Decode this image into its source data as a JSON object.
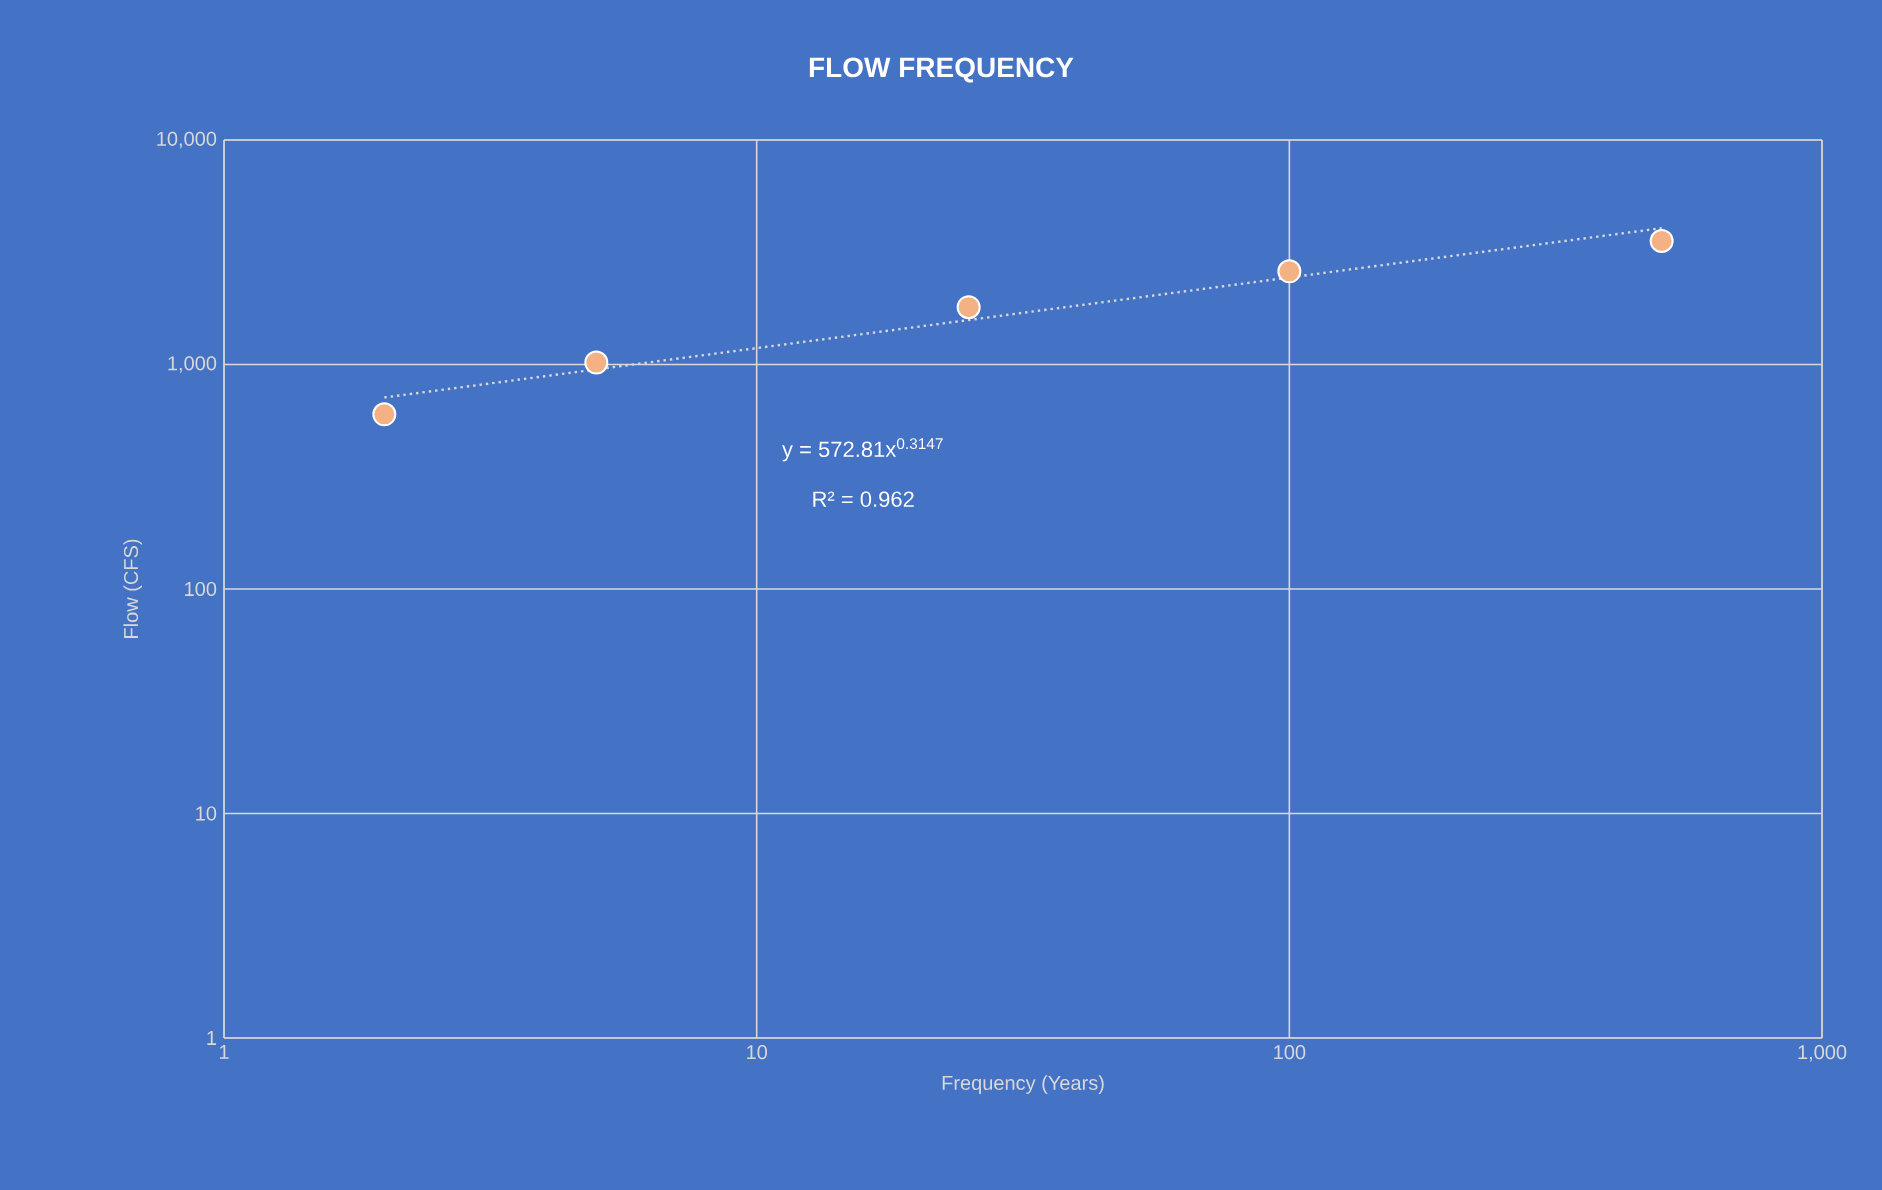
{
  "chart_data": {
    "type": "scatter",
    "title": "FLOW FREQUENCY",
    "xlabel": "Frequency (Years)",
    "ylabel": "Flow (CFS)",
    "log": "xy",
    "grid": true,
    "marker": "circle",
    "xlim": [
      1,
      1000
    ],
    "ylim": [
      1,
      10000
    ],
    "xticks": [
      1,
      10,
      100,
      {
        "value": 1000,
        "label": "1,000"
      }
    ],
    "yticks": [
      1,
      10,
      100,
      {
        "value": 1000,
        "label": "1,000"
      },
      {
        "value": 10000,
        "label": "10,000"
      }
    ],
    "annotations": [
      "y = 572.81x$^{0.3147}$",
      "R² = 0.962"
    ],
    "series": [
      {
        "color": "#f4b183",
        "x": [
          2,
          5,
          25,
          100,
          500
        ],
        "values": [
          600,
          1020,
          1800,
          2600,
          3550
        ]
      },
      {
        "type": "line",
        "color": "#d9d9d9",
        "line_style": "dotted",
        "marker": "none",
        "x": [
          2,
          500
        ],
        "values": [
          713,
          4049
        ]
      }
    ]
  }
}
